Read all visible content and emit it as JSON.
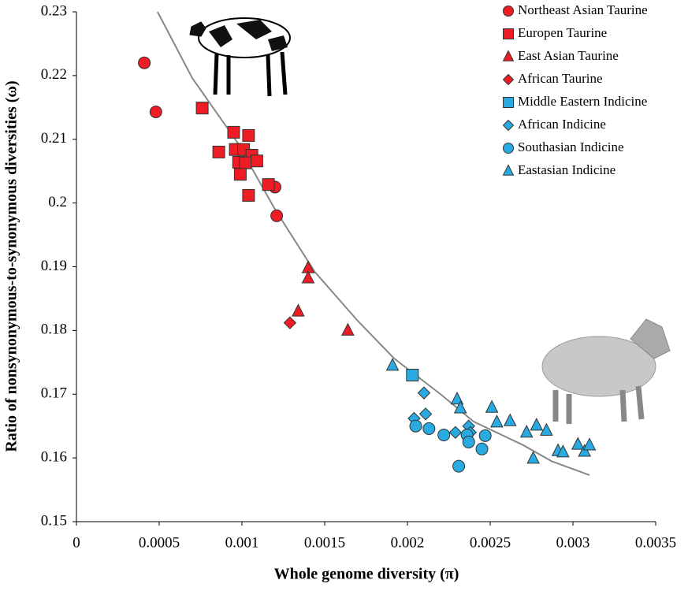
{
  "chart_data": {
    "type": "scatter",
    "x_label": "Whole genome diversity (π)",
    "y_label": "Ratio of nonsynonymous-to-synonymous diversities (ω)",
    "xlim": [
      0,
      0.0035
    ],
    "xticks": [
      0,
      0.0005,
      0.001,
      0.0015,
      0.002,
      0.0025,
      0.003,
      0.0035
    ],
    "ylim": [
      0.15,
      0.23
    ],
    "yticks": [
      0.15,
      0.16,
      0.17,
      0.18,
      0.19,
      0.2,
      0.21,
      0.22,
      0.23
    ],
    "grid": false,
    "legend": "top-right",
    "series": [
      {
        "name": "Northeast Asian Taurine",
        "color": "#ee1c25",
        "marker": "circle",
        "x": [
          0.00041,
          0.00048,
          0.0012,
          0.00121
        ],
        "values": [
          0.222,
          0.2143,
          0.2025,
          0.198
        ]
      },
      {
        "name": "Europen Taurine",
        "color": "#ee1c25",
        "marker": "square",
        "x": [
          0.00076,
          0.00095,
          0.00104,
          0.00086,
          0.00096,
          0.00101,
          0.00106,
          0.00109,
          0.00098,
          0.00102,
          0.00099,
          0.00116,
          0.00104
        ],
        "values": [
          0.2149,
          0.2111,
          0.2106,
          0.208,
          0.2084,
          0.2084,
          0.2075,
          0.2066,
          0.2064,
          0.2063,
          0.2045,
          0.2029,
          0.2012
        ]
      },
      {
        "name": "East Asian Taurine",
        "color": "#ee1c25",
        "marker": "triangle",
        "x": [
          0.0014,
          0.0014,
          0.00134,
          0.00164
        ],
        "values": [
          0.1898,
          0.1882,
          0.183,
          0.18
        ]
      },
      {
        "name": "African Taurine",
        "color": "#ee1c25",
        "marker": "diamond",
        "x": [
          0.00129
        ],
        "values": [
          0.1812
        ]
      },
      {
        "name": "Middle Eastern Indicine",
        "color": "#29abe2",
        "marker": "square",
        "x": [
          0.00203
        ],
        "values": [
          0.173
        ]
      },
      {
        "name": "African Indicine",
        "color": "#29abe2",
        "marker": "diamond",
        "x": [
          0.0021,
          0.00204,
          0.00211,
          0.00229,
          0.00237,
          0.00238
        ],
        "values": [
          0.1702,
          0.1662,
          0.1669,
          0.164,
          0.165,
          0.164
        ]
      },
      {
        "name": "Southasian Indicine",
        "color": "#29abe2",
        "marker": "circle",
        "x": [
          0.00205,
          0.00213,
          0.00222,
          0.00236,
          0.00237,
          0.00247,
          0.00245,
          0.00231
        ],
        "values": [
          0.165,
          0.1646,
          0.1636,
          0.1636,
          0.1625,
          0.1635,
          0.1614,
          0.1587
        ]
      },
      {
        "name": "Eastasian Indicine",
        "color": "#29abe2",
        "marker": "triangle",
        "x": [
          0.00191,
          0.0023,
          0.00232,
          0.00251,
          0.00254,
          0.00262,
          0.00272,
          0.00278,
          0.00284,
          0.00276,
          0.00291,
          0.00294,
          0.00303,
          0.00307,
          0.0031
        ],
        "values": [
          0.1745,
          0.1692,
          0.1678,
          0.1679,
          0.1656,
          0.1658,
          0.164,
          0.1651,
          0.1643,
          0.1599,
          0.1611,
          0.1609,
          0.1621,
          0.161,
          0.162
        ]
      }
    ],
    "trendline": {
      "color": "#888888",
      "x": [
        0.00049,
        0.0007,
        0.00097,
        0.0012,
        0.00144,
        0.0017,
        0.00192,
        0.0022,
        0.0024,
        0.0027,
        0.00287,
        0.0031
      ],
      "values": [
        0.23,
        0.2196,
        0.2096,
        0.199,
        0.1892,
        0.1815,
        0.1756,
        0.17,
        0.1657,
        0.162,
        0.1595,
        0.1573
      ]
    }
  }
}
